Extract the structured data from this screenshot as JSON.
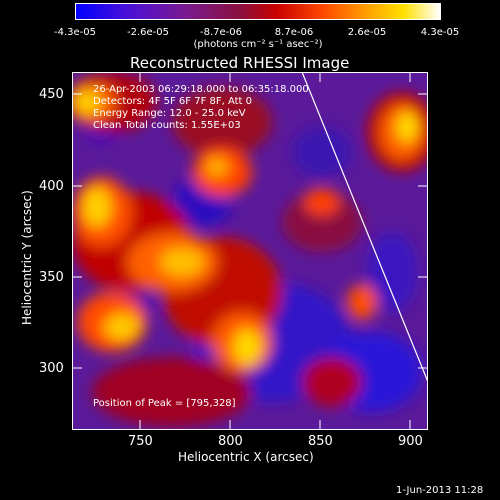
{
  "colorbar": {
    "tick_labels": [
      "-4.3e-05",
      "-2.6e-05",
      "-8.7e-06",
      "8.7e-06",
      "2.6e-05",
      "4.3e-05"
    ],
    "unit_label": "(photons cm⁻² s⁻¹ asec⁻²)",
    "colors": [
      "#0000ff",
      "#5010c8",
      "#801060",
      "#c00000",
      "#ff6000",
      "#ffd000",
      "#ffffff"
    ]
  },
  "plot": {
    "title": "Reconstructed RHESSI Image",
    "xlabel": "Heliocentric X (arcsec)",
    "ylabel": "Heliocentric Y (arcsec)",
    "x_ticks": [
      "750",
      "800",
      "850",
      "900"
    ],
    "y_ticks": [
      "450",
      "400",
      "350",
      "300"
    ],
    "xlim": [
      716,
      905
    ],
    "ylim": [
      266,
      466
    ]
  },
  "annotations": {
    "time_range": "26-Apr-2003 06:29:18.000 to 06:35:18.000",
    "detectors": "Detectors: 4F 5F 6F 7F 8F, Att 0",
    "energy": "Energy Range: 12.0 - 25.0 keV",
    "method": "Clean    Total counts: 1.55E+03",
    "peak": "Position of Peak = [795,328]"
  },
  "footer": {
    "date": "1-Jun-2013 11:28"
  }
}
